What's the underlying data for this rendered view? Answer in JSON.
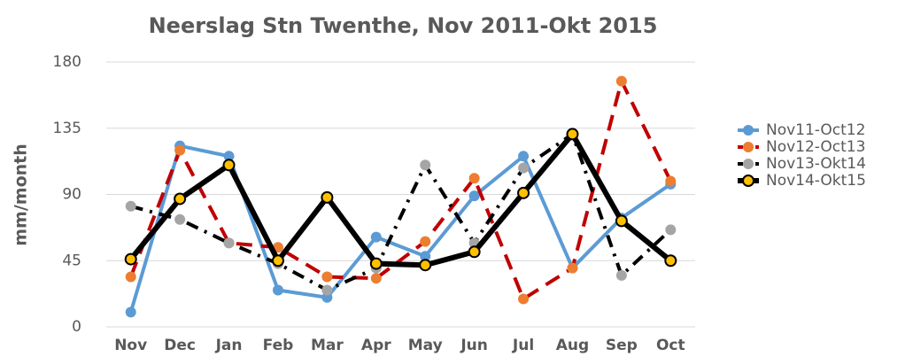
{
  "chart_data": {
    "type": "line",
    "title": "Neerslag Stn Twenthe, Nov 2011-Okt 2015",
    "y_label": "mm/month",
    "categories": [
      "Nov",
      "Dec",
      "Jan",
      "Feb",
      "Mar",
      "Apr",
      "May",
      "Jun",
      "Jul",
      "Aug",
      "Sep",
      "Oct"
    ],
    "ylim": [
      0,
      180
    ],
    "yticks": [
      0,
      45,
      90,
      135,
      180
    ],
    "grid": true,
    "legend": "right",
    "series": [
      {
        "name": "Nov11-Oct12",
        "color": "#5b9bd5",
        "line_color": "#5b9bd5",
        "line_style": "solid",
        "values": [
          10,
          123,
          116,
          25,
          20,
          61,
          48,
          89,
          116,
          40,
          74,
          97
        ]
      },
      {
        "name": "Nov12-Oct13",
        "color": "#ed7d31",
        "line_color": "#c00000",
        "line_style": "dashed",
        "values": [
          34,
          120,
          57,
          54,
          34,
          33,
          58,
          101,
          19,
          40,
          167,
          99
        ]
      },
      {
        "name": "Nov13-Okt14",
        "color": "#a5a5a5",
        "line_color": "#000000",
        "line_style": "dashdot",
        "values": [
          82,
          73,
          57,
          43,
          25,
          40,
          110,
          57,
          108,
          131,
          35,
          66
        ]
      },
      {
        "name": "Nov14-Okt15",
        "color": "#ffc000",
        "line_color": "#000000",
        "line_style": "solid-thick",
        "values": [
          46,
          87,
          110,
          45,
          88,
          43,
          42,
          51,
          91,
          131,
          72,
          45
        ]
      }
    ]
  }
}
